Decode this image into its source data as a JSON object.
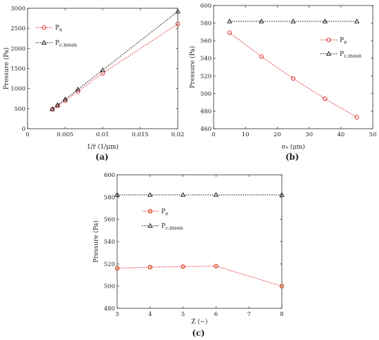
{
  "figure": {
    "panels": [
      "a",
      "b",
      "c"
    ]
  },
  "chart_data": [
    {
      "type": "line",
      "caption": "(a)",
      "xlabel": "1/r̄ (1/μm)",
      "ylabel": "Pressure (Pa)",
      "xlim": [
        0,
        0.02
      ],
      "ylim": [
        0,
        3000
      ],
      "xticks": [
        0,
        0.005,
        0.01,
        0.015,
        0.02
      ],
      "xtick_labels": [
        "0",
        "0.005",
        "0.01",
        "0.015",
        "0.02"
      ],
      "yticks": [
        0,
        500,
        1000,
        1500,
        2000,
        2500,
        3000
      ],
      "ytick_labels": [
        "0",
        "500",
        "1000",
        "1500",
        "2000",
        "2500",
        "3000"
      ],
      "legend_position": "top-left",
      "grid": false,
      "series": [
        {
          "name": "P",
          "sub": "e",
          "color": "#e0262b",
          "marker": "circle",
          "x": [
            0.0033,
            0.004,
            0.005,
            0.0067,
            0.01,
            0.02
          ],
          "y": [
            480,
            570,
            700,
            930,
            1380,
            2610
          ]
        },
        {
          "name": "P",
          "sub": "c,mean",
          "color": "#111111",
          "marker": "triangle",
          "x": [
            0.0033,
            0.004,
            0.005,
            0.0067,
            0.01,
            0.02
          ],
          "y": [
            490,
            590,
            730,
            980,
            1460,
            2920
          ]
        }
      ]
    },
    {
      "type": "line",
      "caption": "(b)",
      "xlabel": "σ₀ (μm)",
      "ylabel": "Pressure (Pa)",
      "xlim": [
        0,
        50
      ],
      "ylim": [
        460,
        600
      ],
      "xticks": [
        0,
        10,
        20,
        30,
        40,
        50
      ],
      "xtick_labels": [
        "0",
        "10",
        "20",
        "30",
        "40",
        "50"
      ],
      "yticks": [
        460,
        480,
        500,
        520,
        540,
        560,
        580,
        600
      ],
      "ytick_labels": [
        "460",
        "480",
        "500",
        "520",
        "540",
        "560",
        "580",
        "600"
      ],
      "legend_position": "right",
      "grid": false,
      "series": [
        {
          "name": "P",
          "sub": "e",
          "color": "#e0262b",
          "marker": "circle",
          "x": [
            5,
            15,
            25,
            35,
            45
          ],
          "y": [
            569,
            542,
            517,
            494,
            473
          ]
        },
        {
          "name": "P",
          "sub": "c,mean",
          "color": "#111111",
          "marker": "triangle",
          "x": [
            5,
            15,
            25,
            35,
            45
          ],
          "y": [
            582,
            582,
            582,
            582,
            582
          ]
        }
      ]
    },
    {
      "type": "line",
      "caption": "(c)",
      "xlabel": "Z (−)",
      "ylabel": "Pressure (Pa)",
      "xlim": [
        3,
        8
      ],
      "ylim": [
        480,
        600
      ],
      "xticks": [
        3,
        4,
        5,
        6,
        7,
        8
      ],
      "xtick_labels": [
        "3",
        "4",
        "5",
        "6",
        "7",
        "8"
      ],
      "yticks": [
        480,
        500,
        520,
        540,
        560,
        580,
        600
      ],
      "ytick_labels": [
        "480",
        "500",
        "520",
        "540",
        "560",
        "580",
        "600"
      ],
      "legend_position": "left",
      "grid": false,
      "series": [
        {
          "name": "P",
          "sub": "e",
          "color": "#e0262b",
          "marker": "circle",
          "x": [
            3,
            4,
            5,
            6,
            8
          ],
          "y": [
            516,
            517,
            517.5,
            518,
            500
          ]
        },
        {
          "name": "P",
          "sub": "c,mean",
          "color": "#111111",
          "marker": "triangle",
          "x": [
            3,
            4,
            5,
            6,
            8
          ],
          "y": [
            582,
            582,
            582,
            582,
            582
          ]
        }
      ]
    }
  ]
}
